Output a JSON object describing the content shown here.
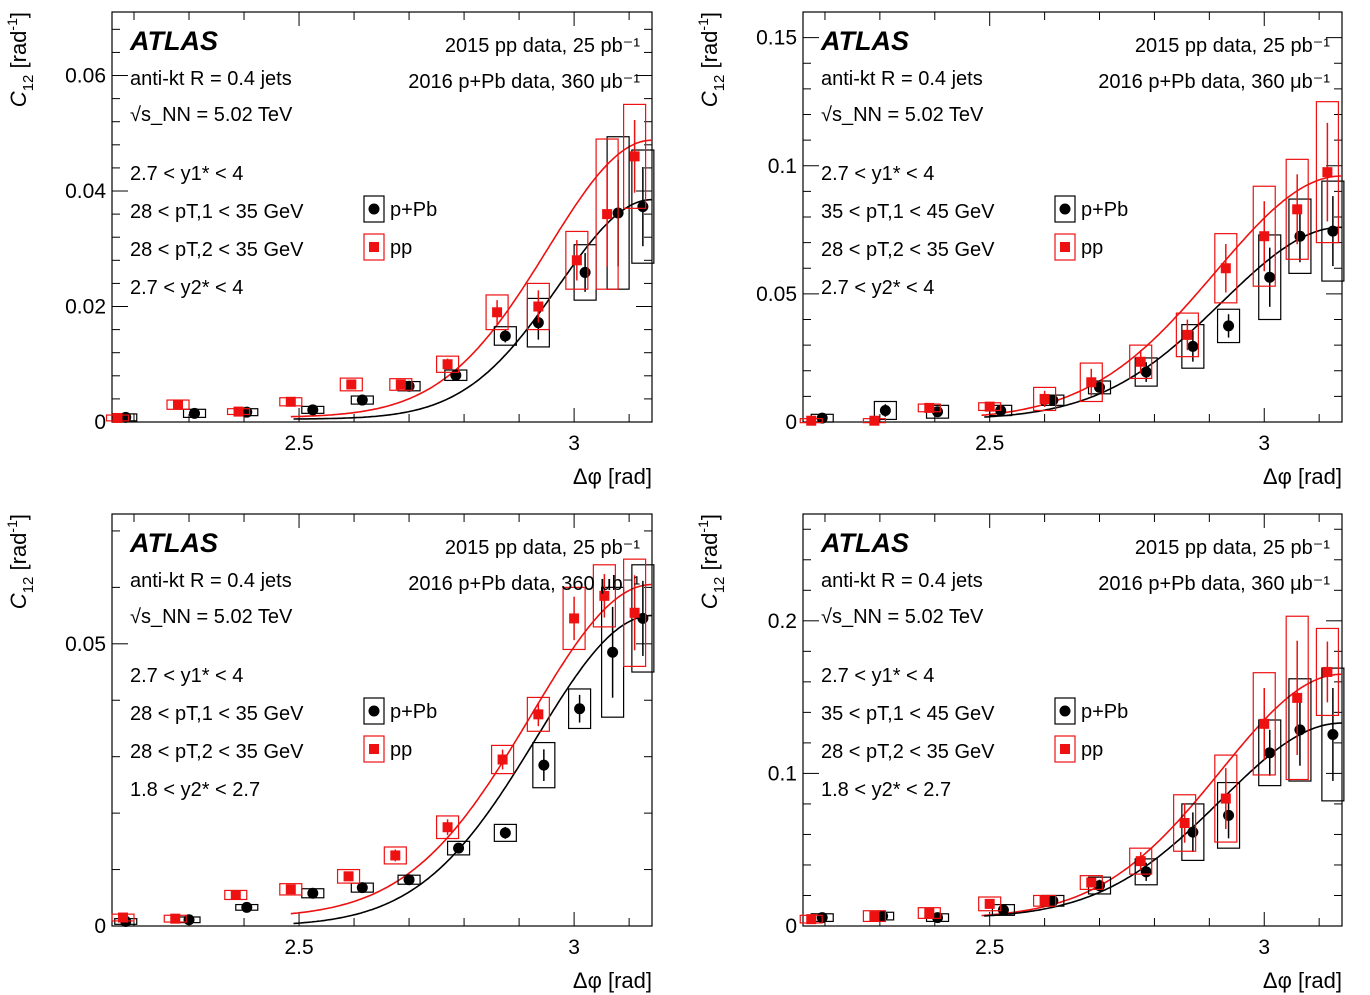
{
  "common": {
    "atlas": "ATLAS",
    "data_pp": "2015 pp data, 25 pb⁻¹",
    "data_ppb": "2016 p+Pb data, 360 μb⁻¹",
    "jets": "anti-kt R = 0.4 jets",
    "energy": "√s_NN = 5.02 TeV",
    "xlabel": "Δφ [rad]",
    "ylabel": "C12 [rad⁻¹]",
    "legend_ppb": "p+Pb",
    "legend_pp": "pp",
    "colors": {
      "ppb": "#000000",
      "pp": "#ee1111"
    }
  },
  "chart_data": [
    {
      "type": "scatter",
      "panel": "top-left",
      "xlabel": "Δφ [rad]",
      "ylabel": "C12 [rad⁻¹]",
      "xlim": [
        2.16,
        3.1416
      ],
      "ylim": [
        0,
        0.071
      ],
      "xticks": [
        2.5,
        3
      ],
      "yticks": [
        0,
        0.02,
        0.04,
        0.06
      ],
      "ytick_labels": [
        "0",
        "0.02",
        "0.04",
        "0.06"
      ],
      "cuts": [
        "2.7 < y1* < 4",
        "28 < pT,1 < 35 GeV",
        "28 < pT,2 < 35 GeV",
        "2.7 < y2* < 4"
      ],
      "series": [
        {
          "name": "p+Pb",
          "x": [
            2.185,
            2.31,
            2.405,
            2.525,
            2.615,
            2.7,
            2.785,
            2.875,
            2.935,
            3.02,
            3.08,
            3.125
          ],
          "y": [
            0.0008,
            0.0015,
            0.0017,
            0.0021,
            0.0038,
            0.0062,
            0.0081,
            0.0149,
            0.0172,
            0.0259,
            0.0362,
            0.0373
          ],
          "sys": [
            0.0006,
            0.0007,
            0.0006,
            0.0006,
            0.0007,
            0.0008,
            0.0009,
            0.0016,
            0.0042,
            0.0048,
            0.0132,
            0.0098
          ]
        },
        {
          "name": "pp",
          "x": [
            2.17,
            2.28,
            2.39,
            2.485,
            2.595,
            2.685,
            2.77,
            2.86,
            2.935,
            3.005,
            3.06,
            3.11
          ],
          "y": [
            0.0007,
            0.003,
            0.0018,
            0.0035,
            0.0065,
            0.0065,
            0.01,
            0.019,
            0.02,
            0.028,
            0.036,
            0.046
          ],
          "sys": [
            0.0005,
            0.0008,
            0.0005,
            0.0007,
            0.0011,
            0.001,
            0.0014,
            0.003,
            0.004,
            0.005,
            0.013,
            0.009
          ]
        }
      ],
      "fits": {
        "p+Pb": {
          "a": 0.0005,
          "b": 0.038,
          "mu": 3.1416,
          "sigma": 0.17
        },
        "pp": {
          "a": 0.0008,
          "b": 0.048,
          "mu": 3.1416,
          "sigma": 0.19
        }
      }
    },
    {
      "type": "scatter",
      "panel": "top-right",
      "xlabel": "Δφ [rad]",
      "ylabel": "C12 [rad⁻¹]",
      "xlim": [
        2.16,
        3.1416
      ],
      "ylim": [
        0,
        0.16
      ],
      "xticks": [
        2.5,
        3
      ],
      "yticks": [
        0,
        0.05,
        0.1,
        0.15
      ],
      "ytick_labels": [
        "0",
        "0.05",
        "0.1",
        "0.15"
      ],
      "cuts": [
        "2.7 < y1* < 4",
        "35 < pT,1 < 45 GeV",
        "28 < pT,2 < 35 GeV",
        "2.7 < y2* < 4"
      ],
      "series": [
        {
          "name": "p+Pb",
          "x": [
            2.195,
            2.31,
            2.405,
            2.52,
            2.615,
            2.7,
            2.785,
            2.87,
            2.935,
            3.01,
            3.065,
            3.125
          ],
          "y": [
            0.0015,
            0.0045,
            0.004,
            0.0045,
            0.0085,
            0.0135,
            0.0195,
            0.0295,
            0.0375,
            0.0565,
            0.0725,
            0.0745
          ],
          "sys": [
            0.0015,
            0.0035,
            0.0025,
            0.002,
            0.002,
            0.0025,
            0.0055,
            0.0085,
            0.0065,
            0.0165,
            0.0145,
            0.0195
          ]
        },
        {
          "name": "pp",
          "x": [
            2.175,
            2.29,
            2.39,
            2.5,
            2.6,
            2.685,
            2.775,
            2.86,
            2.93,
            3.0,
            3.06,
            3.115
          ],
          "y": [
            0.0005,
            0.0005,
            0.0055,
            0.006,
            0.009,
            0.0155,
            0.0235,
            0.034,
            0.06,
            0.0725,
            0.083,
            0.0975
          ],
          "sys": [
            0.0008,
            0.0008,
            0.0015,
            0.0015,
            0.0045,
            0.0075,
            0.0065,
            0.0085,
            0.0135,
            0.0195,
            0.0195,
            0.0275
          ]
        }
      ],
      "fits": {
        "p+Pb": {
          "a": 0.001,
          "b": 0.075,
          "mu": 3.1416,
          "sigma": 0.22
        },
        "pp": {
          "a": 0.001,
          "b": 0.095,
          "mu": 3.1416,
          "sigma": 0.23
        }
      }
    },
    {
      "type": "scatter",
      "panel": "bottom-left",
      "xlabel": "Δφ [rad]",
      "ylabel": "C12 [rad⁻¹]",
      "xlim": [
        2.16,
        3.1416
      ],
      "ylim": [
        0,
        0.073
      ],
      "xticks": [
        2.5,
        3
      ],
      "yticks": [
        0,
        0.05
      ],
      "ytick_labels": [
        "0",
        "0.05"
      ],
      "cuts": [
        "2.7 < y1* < 4",
        "28 < pT,1 < 35 GeV",
        "28 < pT,2 < 35 GeV",
        "1.8 < y2* < 2.7"
      ],
      "series": [
        {
          "name": "p+Pb",
          "x": [
            2.185,
            2.3,
            2.405,
            2.525,
            2.615,
            2.7,
            2.79,
            2.875,
            2.945,
            3.01,
            3.07,
            3.125
          ],
          "y": [
            0.0008,
            0.0011,
            0.0033,
            0.0058,
            0.0068,
            0.0082,
            0.0138,
            0.0165,
            0.0285,
            0.0385,
            0.0485,
            0.0545
          ],
          "sys": [
            0.0005,
            0.0005,
            0.0005,
            0.0008,
            0.0008,
            0.0008,
            0.0012,
            0.0015,
            0.004,
            0.0035,
            0.0115,
            0.0095
          ]
        },
        {
          "name": "pp",
          "x": [
            2.18,
            2.275,
            2.385,
            2.485,
            2.59,
            2.675,
            2.77,
            2.87,
            2.935,
            3.0,
            3.055,
            3.11
          ],
          "y": [
            0.0015,
            0.0013,
            0.0055,
            0.0065,
            0.0088,
            0.0125,
            0.0175,
            0.0295,
            0.0375,
            0.0545,
            0.0585,
            0.0555
          ],
          "sys": [
            0.0006,
            0.0006,
            0.0008,
            0.001,
            0.0012,
            0.0015,
            0.002,
            0.0025,
            0.003,
            0.0055,
            0.0055,
            0.0095
          ]
        }
      ],
      "fits": {
        "p+Pb": {
          "a": 0.0,
          "b": 0.055,
          "mu": 3.1416,
          "sigma": 0.21
        },
        "pp": {
          "a": 0.0015,
          "b": 0.059,
          "mu": 3.1416,
          "sigma": 0.22
        }
      }
    },
    {
      "type": "scatter",
      "panel": "bottom-right",
      "xlabel": "Δφ [rad]",
      "ylabel": "C12 [rad⁻¹]",
      "xlim": [
        2.16,
        3.1416
      ],
      "ylim": [
        0,
        0.27
      ],
      "xticks": [
        2.5,
        3
      ],
      "yticks": [
        0,
        0.1,
        0.2
      ],
      "ytick_labels": [
        "0",
        "0.1",
        "0.2"
      ],
      "cuts": [
        "2.7 < y1* < 4",
        "35 < pT,1 < 45 GeV",
        "28 < pT,2 < 35 GeV",
        "1.8 < y2* < 2.7"
      ],
      "series": [
        {
          "name": "p+Pb",
          "x": [
            2.195,
            2.305,
            2.405,
            2.525,
            2.615,
            2.7,
            2.785,
            2.87,
            2.935,
            3.01,
            3.065,
            3.125
          ],
          "y": [
            0.0055,
            0.0065,
            0.0055,
            0.0105,
            0.0165,
            0.0265,
            0.0355,
            0.0615,
            0.0725,
            0.1135,
            0.1285,
            0.1255
          ],
          "sys": [
            0.0025,
            0.0025,
            0.0025,
            0.0035,
            0.0035,
            0.0055,
            0.0085,
            0.0185,
            0.0215,
            0.0215,
            0.0335,
            0.0435
          ]
        },
        {
          "name": "pp",
          "x": [
            2.175,
            2.29,
            2.39,
            2.5,
            2.6,
            2.685,
            2.775,
            2.855,
            2.93,
            3.0,
            3.06,
            3.115
          ],
          "y": [
            0.0045,
            0.0065,
            0.0085,
            0.0145,
            0.0165,
            0.0285,
            0.0425,
            0.0675,
            0.0835,
            0.1325,
            0.1495,
            0.1665
          ],
          "sys": [
            0.0025,
            0.0035,
            0.0035,
            0.0045,
            0.0035,
            0.0045,
            0.0085,
            0.0185,
            0.0285,
            0.0335,
            0.0535,
            0.0285
          ]
        }
      ],
      "fits": {
        "p+Pb": {
          "a": 0.005,
          "b": 0.128,
          "mu": 3.1416,
          "sigma": 0.22
        },
        "pp": {
          "a": 0.005,
          "b": 0.16,
          "mu": 3.1416,
          "sigma": 0.22
        }
      }
    }
  ]
}
